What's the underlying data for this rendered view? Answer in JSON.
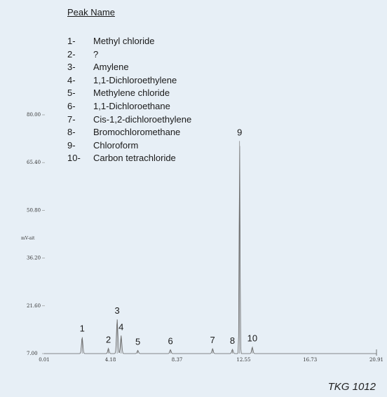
{
  "legend": {
    "title": "Peak Name",
    "items": [
      {
        "num": "1-",
        "name": "Methyl chloride"
      },
      {
        "num": "2-",
        "name": "?"
      },
      {
        "num": "3-",
        "name": "Amylene"
      },
      {
        "num": "4-",
        "name": "1,1-Dichloroethylene"
      },
      {
        "num": "5-",
        "name": "Methylene chloride"
      },
      {
        "num": "6-",
        "name": "1,1-Dichloroethane"
      },
      {
        "num": "7-",
        "name": "Cis-1,2-dichloroethylene"
      },
      {
        "num": "8-",
        "name": "Bromochloromethane"
      },
      {
        "num": "9-",
        "name": "Chloroform"
      },
      {
        "num": "10-",
        "name": "Carbon tetrachloride"
      }
    ]
  },
  "footer": "TKG 1012",
  "chart_data": {
    "type": "line",
    "title": "",
    "xlabel": "",
    "ylabel": "mV-ait",
    "x_ticks": [
      "0.01",
      "4.18",
      "8.37",
      "12.55",
      "16.73",
      "20.91"
    ],
    "x_tick_values": [
      0.01,
      4.18,
      8.37,
      12.55,
      16.73,
      20.91
    ],
    "y_ticks": [
      "7.00",
      "21.60",
      "36.20",
      "50.80",
      "65.40",
      "80.00"
    ],
    "y_tick_values": [
      7.0,
      21.6,
      36.2,
      50.8,
      65.4,
      80.0
    ],
    "xlim": [
      0.01,
      20.91
    ],
    "ylim": [
      7.0,
      80.0
    ],
    "grid": false,
    "peaks": [
      {
        "label": "1",
        "rt": 2.4,
        "height": 12.0
      },
      {
        "label": "2",
        "rt": 4.05,
        "height": 8.6
      },
      {
        "label": "3",
        "rt": 4.6,
        "height": 17.5
      },
      {
        "label": "4",
        "rt": 4.85,
        "height": 12.5
      },
      {
        "label": "5",
        "rt": 5.9,
        "height": 8.0
      },
      {
        "label": "6",
        "rt": 7.95,
        "height": 8.2
      },
      {
        "label": "7",
        "rt": 10.6,
        "height": 8.5
      },
      {
        "label": "8",
        "rt": 11.85,
        "height": 8.3
      },
      {
        "label": "9",
        "rt": 12.3,
        "height": 72.0
      },
      {
        "label": "10",
        "rt": 13.1,
        "height": 9.0
      }
    ]
  }
}
